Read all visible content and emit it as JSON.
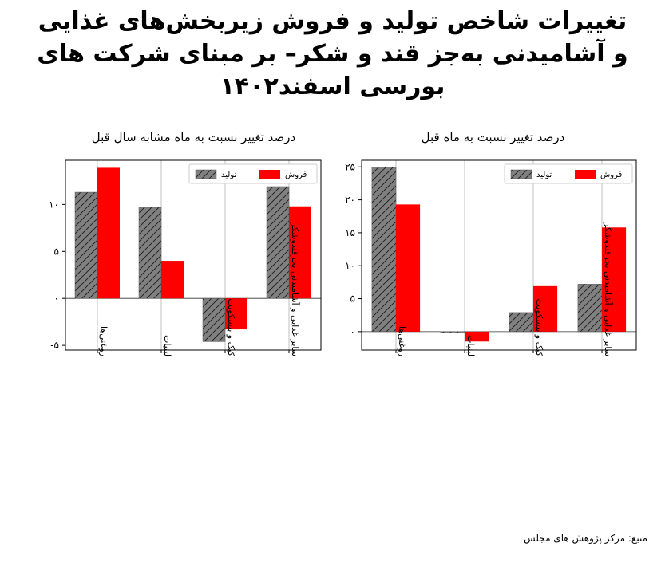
{
  "title": "تغییرات  شاخص تولید و فروش زیربخش‌های غذایی و آشامیدنی به‌جز قند و شکر– بر مبنای شرکت های بورسی اسفند۱۴۰۲",
  "source": "منبع: مرکز پژوهش های مجلس",
  "colors": {
    "production": "#808080",
    "sales": "#ff0000"
  },
  "chart_data": [
    {
      "type": "bar",
      "title": "درصد تغییر نسبت به ماه مشابه سال قبل",
      "categories": [
        "روغنی‌ها",
        "لبنیات",
        "کیک و بیسکویت",
        "سایر غذایی و آشامیدنی بجزقندوشکر"
      ],
      "series": [
        {
          "name": "تولید",
          "values": [
            11.3,
            9.7,
            -4.6,
            11.9
          ],
          "hatch": true
        },
        {
          "name": "فروش",
          "values": [
            13.9,
            4.0,
            -3.3,
            9.8
          ],
          "hatch": false
        }
      ],
      "ylim": [
        -5.5,
        14.7
      ],
      "yticks": [
        -5,
        0,
        5,
        10
      ],
      "ytick_labels": [
        "-۵",
        "۰",
        "۵",
        "۱۰"
      ],
      "grid": "vertical",
      "legend": "top-right"
    },
    {
      "type": "bar",
      "title": "درصد تغییر نسبت به ماه قبل",
      "categories": [
        "روغنی‌ها",
        "لبنیات",
        "کیک و بیسکویت",
        "سایر غذایی و آشامیدنی بجزقندوشکر"
      ],
      "series": [
        {
          "name": "تولید",
          "values": [
            25.0,
            -0.2,
            2.9,
            7.2
          ],
          "hatch": true
        },
        {
          "name": "فروش",
          "values": [
            19.3,
            -1.5,
            6.9,
            15.8
          ],
          "hatch": false
        }
      ],
      "ylim": [
        -2.8,
        26.0
      ],
      "yticks": [
        0,
        5,
        10,
        15,
        20,
        25
      ],
      "ytick_labels": [
        "۰",
        "۵",
        "۱۰",
        "۱۵",
        "۲۰",
        "۲۵"
      ],
      "grid": "vertical",
      "legend": "top-right"
    }
  ]
}
